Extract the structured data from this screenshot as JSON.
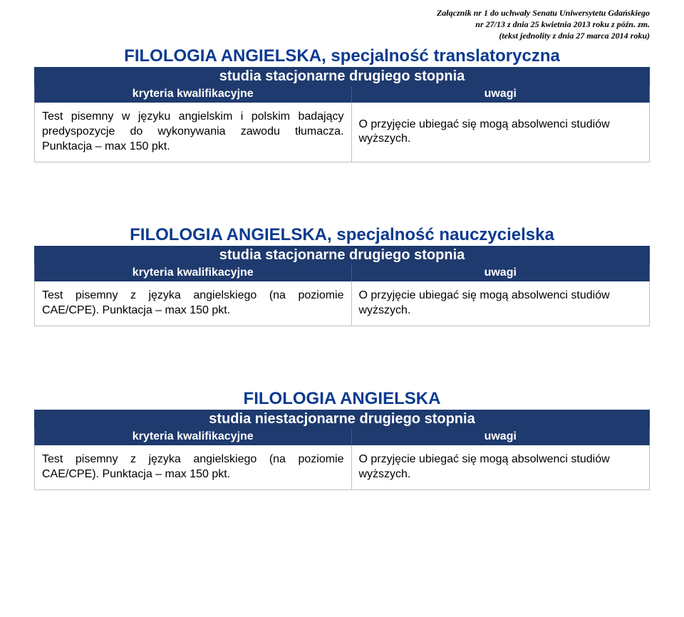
{
  "colors": {
    "title": "#0b3a8f",
    "bar_bg": "#1f3a6e",
    "bar_text": "#ffffff",
    "cell_border": "#bfbfbf",
    "body_text": "#000000"
  },
  "header": {
    "line1": "Załącznik nr 1 do uchwały Senatu Uniwersytetu Gdańskiego",
    "line2": "nr 27/13 z dnia 25 kwietnia 2013 roku z późn. zm.",
    "line3": "(tekst jednolity z dnia 27 marca 2014 roku)"
  },
  "sections": [
    {
      "title": "FILOLOGIA ANGIELSKA, specjalność translatoryczna",
      "subtitle": "studia stacjonarne drugiego stopnia",
      "col_left": "kryteria kwalifikacyjne",
      "col_right": "uwagi",
      "left_cell": "Test pisemny w języku angielskim i polskim badający predyspozycje do wykonywania zawodu tłumacza. Punktacja – max 150 pkt.",
      "right_cell": "O przyjęcie ubiegać się mogą absolwenci studiów wyższych."
    },
    {
      "title": "FILOLOGIA ANGIELSKA, specjalność nauczycielska",
      "subtitle": "studia stacjonarne drugiego stopnia",
      "col_left": "kryteria kwalifikacyjne",
      "col_right": "uwagi",
      "left_cell": "Test pisemny z języka angielskiego (na poziomie CAE/CPE). Punktacja – max 150 pkt.",
      "right_cell": "O przyjęcie ubiegać się mogą absolwenci studiów wyższych."
    },
    {
      "title": "FILOLOGIA ANGIELSKA",
      "subtitle": "studia niestacjonarne drugiego stopnia",
      "col_left": "kryteria kwalifikacyjne",
      "col_right": "uwagi",
      "left_cell": "Test pisemny z języka angielskiego (na poziomie CAE/CPE). Punktacja – max 150 pkt.",
      "right_cell": "O przyjęcie ubiegać się mogą absolwenci studiów wyższych."
    }
  ]
}
